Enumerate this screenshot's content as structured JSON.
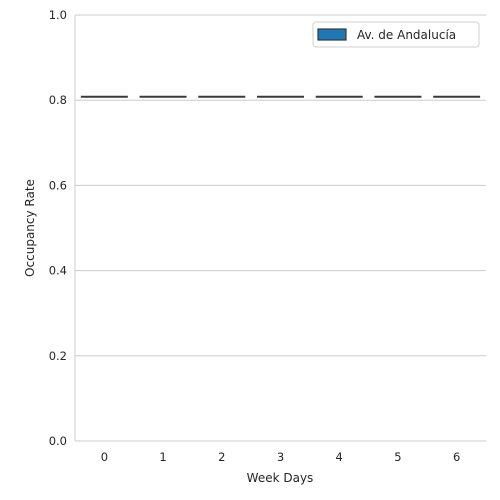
{
  "chart_data": {
    "type": "box",
    "title": "",
    "xlabel": "Week Days",
    "ylabel": "Occupancy Rate",
    "categories": [
      "0",
      "1",
      "2",
      "3",
      "4",
      "5",
      "6"
    ],
    "series": [
      {
        "name": "Av. de Andalucía",
        "color": "#1f77b4",
        "values": [
          0.808,
          0.808,
          0.808,
          0.808,
          0.808,
          0.808,
          0.808
        ]
      }
    ],
    "ylim": [
      0.0,
      1.0
    ],
    "yticks": [
      "0.0",
      "0.2",
      "0.4",
      "0.6",
      "0.8",
      "1.0"
    ],
    "grid": "horizontal",
    "legend_position": "top-right"
  }
}
